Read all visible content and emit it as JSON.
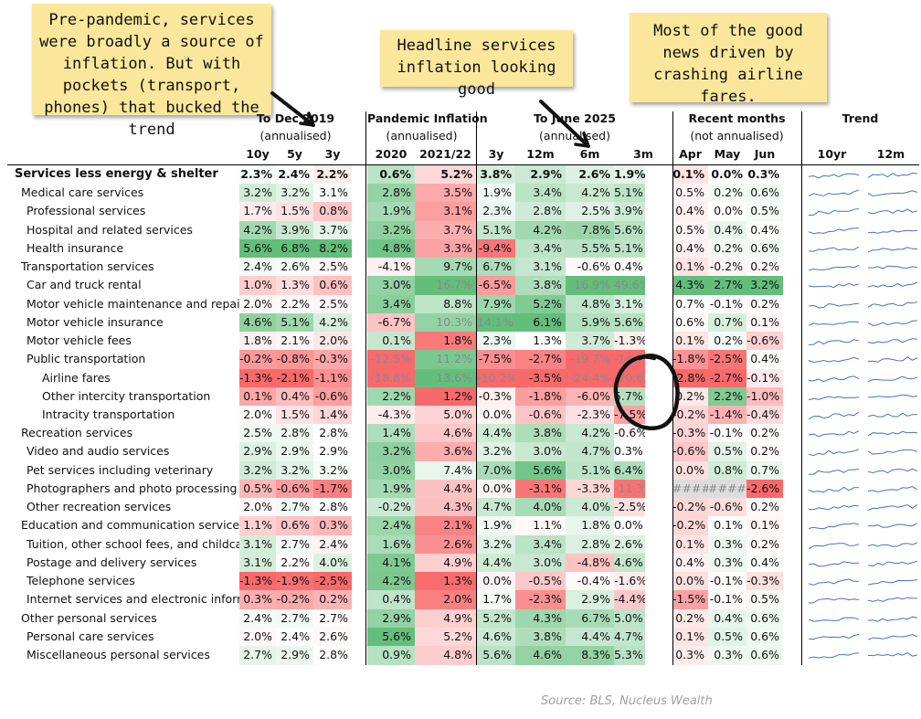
{
  "notes": [
    "Pre-pandemic, services were broadly a source of inflation. But with pockets (transport, phones) that bucked the trend",
    "Headline services inflation looking good",
    "Most of the good news driven by crashing airline fares."
  ],
  "group_headers": [
    {
      "title": "To Dec 2019",
      "sub": "(annualised)"
    },
    {
      "title": "Pandemic Inflation",
      "sub": "(annualised)"
    },
    {
      "title": "To June 2025",
      "sub": "(annualised)"
    },
    {
      "title": "Recent months",
      "sub": "(not annualised)"
    },
    {
      "title": "Trend",
      "sub": ""
    }
  ],
  "column_headers": [
    "10y",
    "5y",
    "3y",
    "2020",
    "2021/22",
    "3y",
    "12m",
    "6m",
    "3m",
    "Apr",
    "May",
    "Jun",
    "10yr",
    "12m"
  ],
  "source": "Source: BLS, Nucleus Wealth",
  "colors": {
    "green": "#63be7b",
    "red": "#f8696b",
    "white": "#ffffff",
    "note": "#fbe79b"
  },
  "chart_data": {
    "type": "heatmap",
    "columns": [
      "10y",
      "5y",
      "3y",
      "2020",
      "2021/22",
      "3y",
      "12m",
      "6m",
      "3m",
      "Apr",
      "May",
      "Jun"
    ],
    "rows": [
      {
        "label": "Services less energy & shelter",
        "level": 0,
        "values": [
          "2.3%",
          "2.4%",
          "2.2%",
          "0.6%",
          "5.2%",
          "3.8%",
          "2.9%",
          "2.6%",
          "1.9%",
          "0.1%",
          "0.0%",
          "0.3%"
        ]
      },
      {
        "label": "Medical care services",
        "level": 1,
        "values": [
          "3.2%",
          "3.2%",
          "3.1%",
          "2.8%",
          "3.5%",
          "1.9%",
          "3.4%",
          "4.2%",
          "5.1%",
          "0.5%",
          "0.2%",
          "0.6%"
        ]
      },
      {
        "label": "Professional services",
        "level": 2,
        "values": [
          "1.7%",
          "1.5%",
          "0.8%",
          "1.9%",
          "3.1%",
          "2.3%",
          "2.8%",
          "2.5%",
          "3.9%",
          "0.4%",
          "0.0%",
          "0.5%"
        ]
      },
      {
        "label": "Hospital and related services",
        "level": 2,
        "values": [
          "4.2%",
          "3.9%",
          "3.7%",
          "3.2%",
          "3.7%",
          "5.1%",
          "4.2%",
          "7.8%",
          "5.6%",
          "0.5%",
          "0.4%",
          "0.4%"
        ]
      },
      {
        "label": "Health insurance",
        "level": 2,
        "values": [
          "5.6%",
          "6.8%",
          "8.2%",
          "4.8%",
          "3.3%",
          "-9.4%",
          "3.4%",
          "5.5%",
          "5.1%",
          "0.4%",
          "0.2%",
          "0.6%"
        ]
      },
      {
        "label": "Transportation services",
        "level": 1,
        "values": [
          "2.4%",
          "2.6%",
          "2.5%",
          "-4.1%",
          "9.7%",
          "6.7%",
          "3.1%",
          "-0.6%",
          "0.4%",
          "0.1%",
          "-0.2%",
          "0.2%"
        ]
      },
      {
        "label": "Car and truck rental",
        "level": 2,
        "values": [
          "1.0%",
          "1.3%",
          "0.6%",
          "3.0%",
          "16.7%",
          "-6.5%",
          "3.8%",
          "16.9%",
          "49.6%",
          "4.3%",
          "2.7%",
          "3.2%"
        ]
      },
      {
        "label": "Motor vehicle maintenance and repair",
        "level": 2,
        "values": [
          "2.0%",
          "2.2%",
          "2.5%",
          "3.4%",
          "8.8%",
          "7.9%",
          "5.2%",
          "4.8%",
          "3.1%",
          "0.7%",
          "-0.1%",
          "0.2%"
        ]
      },
      {
        "label": "Motor vehicle insurance",
        "level": 2,
        "values": [
          "4.6%",
          "5.1%",
          "4.2%",
          "-6.7%",
          "10.3%",
          "14.1%",
          "6.1%",
          "5.9%",
          "5.6%",
          "0.6%",
          "0.7%",
          "0.1%"
        ]
      },
      {
        "label": "Motor vehicle fees",
        "level": 2,
        "values": [
          "1.8%",
          "2.1%",
          "2.0%",
          "0.1%",
          "1.8%",
          "2.3%",
          "1.3%",
          "3.7%",
          "-1.3%",
          "0.1%",
          "0.2%",
          "-0.6%"
        ]
      },
      {
        "label": "Public transportation",
        "level": 2,
        "values": [
          "-0.2%",
          "-0.8%",
          "-0.3%",
          "-12.5%",
          "11.2%",
          "-7.5%",
          "-2.7%",
          "-19.7%",
          "-14.7%",
          "-1.8%",
          "-2.5%",
          "0.4%"
        ]
      },
      {
        "label": "Airline fares",
        "level": 3,
        "values": [
          "-1.3%",
          "-2.1%",
          "-1.1%",
          "-18.8%",
          "13.6%",
          "-10.2%",
          "-3.5%",
          "-24.4%",
          "-20.6%",
          "-2.8%",
          "-2.7%",
          "-0.1%"
        ]
      },
      {
        "label": "Other intercity transportation",
        "level": 3,
        "values": [
          "0.1%",
          "0.4%",
          "-0.6%",
          "2.2%",
          "1.2%",
          "-0.3%",
          "-1.8%",
          "-6.0%",
          "5.7%",
          "0.2%",
          "2.2%",
          "-1.0%"
        ]
      },
      {
        "label": "Intracity transportation",
        "level": 3,
        "values": [
          "2.0%",
          "1.5%",
          "1.4%",
          "-4.3%",
          "5.0%",
          "0.0%",
          "-0.6%",
          "-2.3%",
          "-7.5%",
          "-0.2%",
          "-1.4%",
          "-0.4%"
        ]
      },
      {
        "label": "Recreation services",
        "level": 1,
        "values": [
          "2.5%",
          "2.8%",
          "2.8%",
          "1.4%",
          "4.6%",
          "4.4%",
          "3.8%",
          "4.2%",
          "-0.6%",
          "-0.3%",
          "-0.1%",
          "0.2%"
        ]
      },
      {
        "label": "Video and audio services",
        "level": 2,
        "values": [
          "2.9%",
          "2.9%",
          "2.9%",
          "3.2%",
          "3.6%",
          "3.2%",
          "3.0%",
          "4.7%",
          "0.3%",
          "-0.6%",
          "0.5%",
          "0.2%"
        ]
      },
      {
        "label": "Pet services including veterinary",
        "level": 2,
        "values": [
          "3.2%",
          "3.2%",
          "3.2%",
          "3.0%",
          "7.4%",
          "7.0%",
          "5.6%",
          "5.1%",
          "6.4%",
          "0.0%",
          "0.8%",
          "0.7%"
        ]
      },
      {
        "label": "Photographers and photo processing",
        "level": 2,
        "values": [
          "0.5%",
          "-0.6%",
          "-1.7%",
          "1.9%",
          "4.4%",
          "0.0%",
          "-3.1%",
          "-3.3%",
          "-11.3%",
          "######",
          "######",
          "-2.6%"
        ]
      },
      {
        "label": "Other recreation services",
        "level": 2,
        "values": [
          "2.0%",
          "2.7%",
          "2.8%",
          "-0.2%",
          "4.3%",
          "4.7%",
          "4.0%",
          "4.0%",
          "-2.5%",
          "-0.2%",
          "-0.6%",
          "0.2%"
        ]
      },
      {
        "label": "Education and communication services",
        "level": 1,
        "values": [
          "1.1%",
          "0.6%",
          "0.3%",
          "2.4%",
          "2.1%",
          "1.9%",
          "1.1%",
          "1.8%",
          "0.0%",
          "-0.2%",
          "0.1%",
          "0.1%"
        ]
      },
      {
        "label": "Tuition, other school fees, and childcare",
        "level": 2,
        "values": [
          "3.1%",
          "2.7%",
          "2.4%",
          "1.6%",
          "2.6%",
          "3.2%",
          "3.4%",
          "2.8%",
          "2.6%",
          "0.1%",
          "0.3%",
          "0.2%"
        ]
      },
      {
        "label": "Postage and delivery services",
        "level": 2,
        "values": [
          "3.1%",
          "2.2%",
          "4.0%",
          "4.1%",
          "4.9%",
          "4.4%",
          "3.0%",
          "-4.8%",
          "4.6%",
          "0.4%",
          "0.3%",
          "0.4%"
        ]
      },
      {
        "label": "Telephone services",
        "level": 2,
        "values": [
          "-1.3%",
          "-1.9%",
          "-2.5%",
          "4.2%",
          "1.3%",
          "0.0%",
          "-0.5%",
          "-0.4%",
          "-1.6%",
          "0.0%",
          "-0.1%",
          "-0.3%"
        ]
      },
      {
        "label": "Internet services and electronic information providers",
        "level": 2,
        "values": [
          "0.3%",
          "-0.2%",
          "0.2%",
          "0.4%",
          "2.0%",
          "1.7%",
          "-2.3%",
          "2.9%",
          "-4.4%",
          "-1.5%",
          "-0.1%",
          "0.5%"
        ]
      },
      {
        "label": "Other personal services",
        "level": 1,
        "values": [
          "2.4%",
          "2.7%",
          "2.7%",
          "2.9%",
          "4.9%",
          "5.2%",
          "4.3%",
          "6.7%",
          "5.0%",
          "0.2%",
          "0.4%",
          "0.6%"
        ]
      },
      {
        "label": "Personal care services",
        "level": 2,
        "values": [
          "2.0%",
          "2.4%",
          "2.6%",
          "5.6%",
          "5.2%",
          "4.6%",
          "3.8%",
          "4.4%",
          "4.7%",
          "0.1%",
          "0.5%",
          "0.6%"
        ]
      },
      {
        "label": "Miscellaneous personal services",
        "level": 2,
        "values": [
          "2.7%",
          "2.9%",
          "2.8%",
          "0.9%",
          "4.8%",
          "5.6%",
          "4.6%",
          "8.3%",
          "5.3%",
          "0.3%",
          "0.3%",
          "0.6%"
        ]
      }
    ]
  }
}
